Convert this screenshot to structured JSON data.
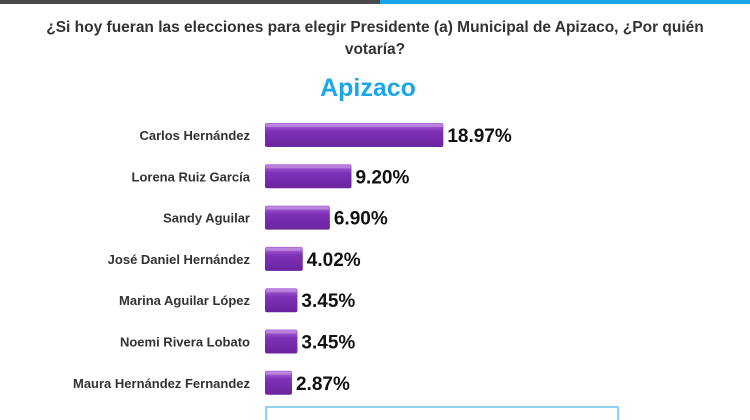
{
  "question": "¿Si hoy fueran las elecciones para elegir Presidente (a) Municipal de Apizaco, ¿Por quién votaría?",
  "colors": {
    "bar": "#7e32b8",
    "bar_top": "#b26cdc",
    "title": "#1aa6e8",
    "strip_dark": "#4a4a4a",
    "strip_light": "#1aa6e8"
  },
  "chart_data": {
    "type": "bar",
    "orientation": "horizontal",
    "title": "Apizaco",
    "categories": [
      "Carlos Hernández",
      "Lorena Ruiz García",
      "Sandy Aguilar",
      "José Daniel Hernández",
      "Marina Aguilar López",
      "Noemi Rivera Lobato",
      "Maura Hernández Fernandez"
    ],
    "values": [
      18.97,
      9.2,
      6.9,
      4.02,
      3.45,
      3.45,
      2.87
    ],
    "value_labels": [
      "18.97%",
      "9.20%",
      "6.90%",
      "4.02%",
      "3.45%",
      "3.45%",
      "2.87%"
    ],
    "xlabel": "",
    "ylabel": "",
    "xlim": [
      0,
      20
    ],
    "grid": false,
    "legend": "none"
  }
}
